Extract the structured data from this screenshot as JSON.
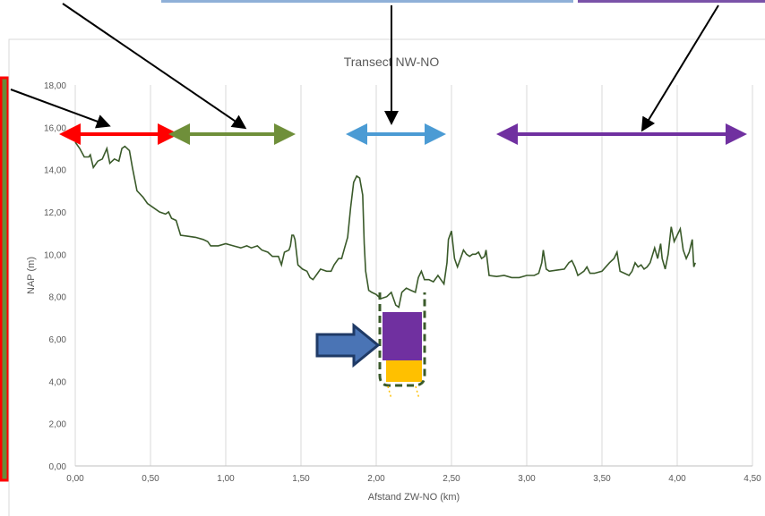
{
  "chart_data": {
    "type": "line",
    "title": "Transect NW-NO",
    "xlabel": "Afstand ZW-NO (km)",
    "ylabel": "NAP (m)",
    "xlim": [
      0,
      4.5
    ],
    "ylim": [
      0,
      18
    ],
    "x_ticks": [
      "0,00",
      "0,50",
      "1,00",
      "1,50",
      "2,00",
      "2,50",
      "3,00",
      "3,50",
      "4,00",
      "4,50"
    ],
    "y_ticks": [
      "0,00",
      "2,00",
      "4,00",
      "6,00",
      "8,00",
      "10,00",
      "12,00",
      "14,00",
      "16,00",
      "18,00"
    ],
    "grid": "vertical",
    "legend": "none",
    "series": [
      {
        "color": "#3a5a2a",
        "points": [
          [
            0.0,
            15.3
          ],
          [
            0.03,
            15.0
          ],
          [
            0.06,
            14.6
          ],
          [
            0.09,
            14.6
          ],
          [
            0.1,
            14.7
          ],
          [
            0.12,
            14.1
          ],
          [
            0.15,
            14.4
          ],
          [
            0.18,
            14.5
          ],
          [
            0.21,
            15.0
          ],
          [
            0.23,
            14.3
          ],
          [
            0.26,
            14.5
          ],
          [
            0.29,
            14.4
          ],
          [
            0.31,
            15.0
          ],
          [
            0.33,
            15.1
          ],
          [
            0.36,
            14.9
          ],
          [
            0.38,
            14.1
          ],
          [
            0.41,
            13.0
          ],
          [
            0.45,
            12.7
          ],
          [
            0.48,
            12.4
          ],
          [
            0.52,
            12.2
          ],
          [
            0.56,
            12.0
          ],
          [
            0.6,
            11.9
          ],
          [
            0.62,
            12.0
          ],
          [
            0.64,
            11.7
          ],
          [
            0.67,
            11.6
          ],
          [
            0.7,
            10.9
          ],
          [
            0.75,
            10.85
          ],
          [
            0.8,
            10.8
          ],
          [
            0.85,
            10.7
          ],
          [
            0.88,
            10.6
          ],
          [
            0.9,
            10.4
          ],
          [
            0.95,
            10.4
          ],
          [
            1.0,
            10.5
          ],
          [
            1.05,
            10.4
          ],
          [
            1.1,
            10.3
          ],
          [
            1.14,
            10.4
          ],
          [
            1.17,
            10.3
          ],
          [
            1.21,
            10.4
          ],
          [
            1.24,
            10.2
          ],
          [
            1.28,
            10.1
          ],
          [
            1.31,
            9.9
          ],
          [
            1.35,
            9.9
          ],
          [
            1.37,
            9.5
          ],
          [
            1.39,
            10.1
          ],
          [
            1.42,
            10.2
          ],
          [
            1.43,
            10.4
          ],
          [
            1.44,
            10.9
          ],
          [
            1.45,
            10.9
          ],
          [
            1.46,
            10.7
          ],
          [
            1.48,
            9.5
          ],
          [
            1.51,
            9.3
          ],
          [
            1.54,
            9.2
          ],
          [
            1.56,
            8.9
          ],
          [
            1.58,
            8.8
          ],
          [
            1.61,
            9.1
          ],
          [
            1.63,
            9.3
          ],
          [
            1.67,
            9.2
          ],
          [
            1.7,
            9.2
          ],
          [
            1.72,
            9.5
          ],
          [
            1.75,
            9.8
          ],
          [
            1.77,
            9.8
          ],
          [
            1.79,
            10.3
          ],
          [
            1.81,
            10.8
          ],
          [
            1.83,
            12.2
          ],
          [
            1.85,
            13.4
          ],
          [
            1.87,
            13.7
          ],
          [
            1.89,
            13.6
          ],
          [
            1.91,
            12.8
          ],
          [
            1.92,
            10.5
          ],
          [
            1.93,
            9.2
          ],
          [
            1.95,
            8.3
          ],
          [
            1.97,
            8.2
          ],
          [
            2.0,
            8.1
          ],
          [
            2.03,
            7.9
          ],
          [
            2.07,
            8.0
          ],
          [
            2.1,
            8.2
          ],
          [
            2.13,
            7.6
          ],
          [
            2.15,
            7.5
          ],
          [
            2.17,
            8.2
          ],
          [
            2.2,
            8.4
          ],
          [
            2.23,
            8.3
          ],
          [
            2.26,
            8.2
          ],
          [
            2.28,
            8.9
          ],
          [
            2.3,
            9.2
          ],
          [
            2.32,
            8.8
          ],
          [
            2.35,
            8.8
          ],
          [
            2.38,
            8.7
          ],
          [
            2.41,
            9.0
          ],
          [
            2.43,
            8.8
          ],
          [
            2.45,
            8.6
          ],
          [
            2.47,
            9.6
          ],
          [
            2.48,
            10.7
          ],
          [
            2.5,
            11.1
          ],
          [
            2.52,
            9.8
          ],
          [
            2.54,
            9.4
          ],
          [
            2.56,
            9.8
          ],
          [
            2.58,
            10.2
          ],
          [
            2.6,
            10.0
          ],
          [
            2.62,
            9.9
          ],
          [
            2.64,
            10.0
          ],
          [
            2.66,
            10.0
          ],
          [
            2.68,
            10.1
          ],
          [
            2.7,
            9.8
          ],
          [
            2.72,
            9.9
          ],
          [
            2.73,
            10.2
          ],
          [
            2.75,
            9.0
          ],
          [
            2.8,
            8.95
          ],
          [
            2.85,
            9.0
          ],
          [
            2.9,
            8.9
          ],
          [
            2.95,
            8.9
          ],
          [
            3.0,
            9.0
          ],
          [
            3.05,
            9.0
          ],
          [
            3.08,
            9.1
          ],
          [
            3.1,
            9.6
          ],
          [
            3.11,
            10.2
          ],
          [
            3.13,
            9.3
          ],
          [
            3.15,
            9.2
          ],
          [
            3.2,
            9.25
          ],
          [
            3.25,
            9.3
          ],
          [
            3.28,
            9.6
          ],
          [
            3.3,
            9.7
          ],
          [
            3.32,
            9.4
          ],
          [
            3.34,
            9.0
          ],
          [
            3.36,
            9.1
          ],
          [
            3.38,
            9.2
          ],
          [
            3.4,
            9.4
          ],
          [
            3.42,
            9.1
          ],
          [
            3.45,
            9.1
          ],
          [
            3.5,
            9.2
          ],
          [
            3.55,
            9.6
          ],
          [
            3.58,
            9.8
          ],
          [
            3.6,
            10.1
          ],
          [
            3.62,
            9.2
          ],
          [
            3.65,
            9.1
          ],
          [
            3.68,
            9.0
          ],
          [
            3.7,
            9.2
          ],
          [
            3.72,
            9.6
          ],
          [
            3.74,
            9.4
          ],
          [
            3.76,
            9.5
          ],
          [
            3.78,
            9.3
          ],
          [
            3.8,
            9.4
          ],
          [
            3.82,
            9.6
          ],
          [
            3.85,
            10.3
          ],
          [
            3.87,
            9.8
          ],
          [
            3.89,
            10.5
          ],
          [
            3.9,
            9.8
          ],
          [
            3.92,
            9.3
          ],
          [
            3.94,
            10.0
          ],
          [
            3.96,
            11.3
          ],
          [
            3.98,
            10.6
          ],
          [
            4.0,
            10.9
          ],
          [
            4.02,
            11.2
          ],
          [
            4.04,
            10.2
          ],
          [
            4.06,
            9.8
          ],
          [
            4.08,
            10.1
          ],
          [
            4.1,
            10.7
          ],
          [
            4.11,
            9.4
          ],
          [
            4.12,
            9.6
          ]
        ]
      }
    ]
  },
  "annotations": {
    "span_colors": [
      "#ff0000",
      "#6f8f3a",
      "#4b9bd4",
      "#7030a0"
    ],
    "pointer_color": "#000000",
    "bar_top_color": "#7030a0",
    "bar_bottom_color": "#ffc000",
    "bar_outline_color": "#3a5a2a",
    "block_arrow_color": "#4a74b5"
  }
}
